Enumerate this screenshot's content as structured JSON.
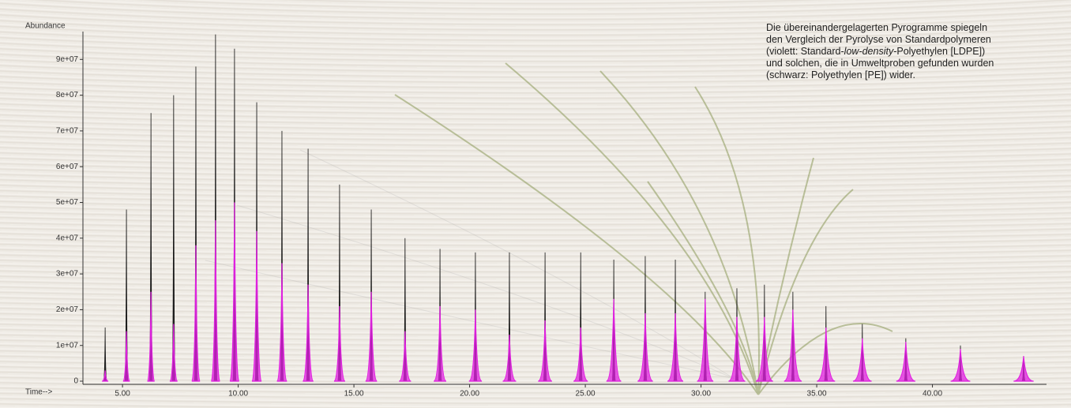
{
  "chart_data": {
    "type": "stem",
    "ylabel": "Abundance",
    "xlabel": "Time-->",
    "annotation": {
      "before": "Die übereinandergelagerten Pyrogramme spiegeln den Vergleich der Pyrolyse von Standardpolymeren (violett: Standard-",
      "italic": "low-density",
      "after": "-Polyethylen [LDPE]) und solchen, die in Umweltproben gefunden wurden (schwarz: Polyethylen [PE]) wider."
    },
    "xlim": [
      3.29,
      44.93
    ],
    "ylim": [
      0,
      100000000
    ],
    "xticks": [
      {
        "value": 5,
        "label": "5.00"
      },
      {
        "value": 10,
        "label": "10.00"
      },
      {
        "value": 15,
        "label": "15.00"
      },
      {
        "value": 20,
        "label": "20.00"
      },
      {
        "value": 25,
        "label": "25.00"
      },
      {
        "value": 30,
        "label": "30.00"
      },
      {
        "value": 35,
        "label": "35.00"
      },
      {
        "value": 40,
        "label": "40.00"
      }
    ],
    "yticks": [
      0,
      {
        "value": 10000000,
        "label": "1e+07"
      },
      {
        "value": 20000000,
        "label": "2e+07"
      },
      {
        "value": 30000000,
        "label": "3e+07"
      },
      {
        "value": 40000000,
        "label": "4e+07"
      },
      {
        "value": 50000000,
        "label": "5e+07"
      },
      {
        "value": 60000000,
        "label": "6e+07"
      },
      {
        "value": 70000000,
        "label": "7e+07"
      },
      {
        "value": 80000000,
        "label": "8e+07"
      },
      {
        "value": 90000000,
        "label": "9e+07"
      }
    ],
    "x": [
      4.25,
      5.17,
      6.23,
      7.21,
      8.17,
      9.02,
      9.84,
      10.8,
      11.89,
      13.02,
      14.38,
      15.75,
      17.21,
      18.72,
      20.25,
      21.72,
      23.26,
      24.8,
      26.23,
      27.59,
      28.89,
      30.18,
      31.55,
      32.74,
      33.97,
      35.4,
      36.97,
      38.85,
      41.21,
      43.94
    ],
    "series": [
      {
        "color": "#111111",
        "values": [
          15000000,
          48000000,
          75000000,
          80000000,
          88000000,
          97000000,
          93000000,
          78000000,
          70000000,
          65000000,
          55000000,
          48000000,
          40000000,
          37000000,
          36000000,
          36000000,
          36000000,
          36000000,
          34000000,
          35000000,
          34000000,
          25000000,
          26000000,
          27000000,
          25000000,
          21000000,
          16000000,
          12000000,
          10000000,
          7000000
        ]
      },
      {
        "color": "#e020e0",
        "values": [
          3000000,
          14000000,
          25000000,
          16000000,
          38000000,
          45000000,
          50000000,
          42000000,
          33000000,
          27000000,
          21000000,
          25000000,
          14000000,
          21000000,
          20000000,
          13000000,
          17000000,
          15000000,
          23000000,
          19000000,
          19000000,
          23000000,
          18000000,
          18000000,
          20000000,
          15000000,
          12000000,
          11000000,
          9000000,
          7000000
        ]
      }
    ]
  }
}
